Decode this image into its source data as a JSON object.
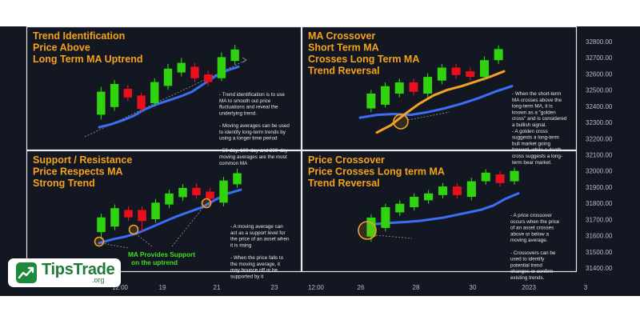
{
  "chart_data": {
    "type": "candlestick",
    "price_axis": {
      "ticks": [
        31400,
        31500,
        31600,
        31700,
        31800,
        31900,
        32000,
        32100,
        32200,
        32300,
        32400,
        32500,
        32600,
        32700,
        32800
      ],
      "labels": [
        "31400.00",
        "31500.00",
        "31600.00",
        "31700.00",
        "31800.00",
        "31900.00",
        "32000.00",
        "32100.00",
        "32200.00",
        "32300.00",
        "32400.00",
        "32500.00",
        "32600.00",
        "32700.00",
        "32800.00"
      ]
    },
    "time_axis": {
      "labels": [
        "12:00",
        "19",
        "21",
        "23",
        "12:00",
        "26",
        "28",
        "30",
        "2023",
        "3"
      ]
    },
    "panels": [
      {
        "id": "trend",
        "title_lines": [
          "Trend Identification",
          "Price Above",
          "Long Term MA Uptrend"
        ],
        "notes": [
          "- Trend identification is to use",
          "MA to smooth out price",
          "fluctuations and reveal the",
          "underlying trend.",
          "",
          "- Moving averages can be used",
          "to identify long-term trends by",
          "using a longer time period",
          "",
          "- 50-day, 100-day and 200-day",
          "moving averages are the most",
          "common MA"
        ],
        "candles": [
          {
            "o": 0.18,
            "c": 0.42,
            "h": 0.47,
            "l": 0.13
          },
          {
            "o": 0.26,
            "c": 0.5,
            "h": 0.54,
            "l": 0.22
          },
          {
            "o": 0.45,
            "c": 0.36,
            "h": 0.49,
            "l": 0.32
          },
          {
            "o": 0.38,
            "c": 0.24,
            "h": 0.41,
            "l": 0.2
          },
          {
            "o": 0.3,
            "c": 0.52,
            "h": 0.56,
            "l": 0.27
          },
          {
            "o": 0.48,
            "c": 0.66,
            "h": 0.71,
            "l": 0.44
          },
          {
            "o": 0.62,
            "c": 0.72,
            "h": 0.77,
            "l": 0.58
          },
          {
            "o": 0.68,
            "c": 0.56,
            "h": 0.72,
            "l": 0.52
          },
          {
            "o": 0.6,
            "c": 0.52,
            "h": 0.64,
            "l": 0.48
          },
          {
            "o": 0.56,
            "c": 0.78,
            "h": 0.83,
            "l": 0.53
          },
          {
            "o": 0.74,
            "c": 0.86,
            "h": 0.91,
            "l": 0.7
          }
        ],
        "ma_long": [
          0.05,
          0.08,
          0.12,
          0.17,
          0.24,
          0.29,
          0.33,
          0.37,
          0.42,
          0.5,
          0.58,
          0.64,
          0.68
        ]
      },
      {
        "id": "ma-crossover",
        "title_lines": [
          "MA Crossover",
          "Short Term MA",
          "Crosses Long Term MA",
          "Trend Reversal"
        ],
        "notes": [
          "- When the short-term",
          "MA crosses above the",
          "long-term MA, it is",
          "known as a \"golden",
          "cross\" and is considered",
          "a bullish signal.",
          "- A golden cross",
          "suggests a long-term",
          "bull market going",
          "forward, while a death",
          "cross suggests a long-",
          "term bear market."
        ],
        "candles": [
          {
            "o": 0.28,
            "c": 0.44,
            "h": 0.48,
            "l": 0.24
          },
          {
            "o": 0.32,
            "c": 0.52,
            "h": 0.56,
            "l": 0.29
          },
          {
            "o": 0.44,
            "c": 0.56,
            "h": 0.6,
            "l": 0.4
          },
          {
            "o": 0.56,
            "c": 0.46,
            "h": 0.6,
            "l": 0.42
          },
          {
            "o": 0.44,
            "c": 0.62,
            "h": 0.66,
            "l": 0.4
          },
          {
            "o": 0.58,
            "c": 0.72,
            "h": 0.76,
            "l": 0.54
          },
          {
            "o": 0.72,
            "c": 0.64,
            "h": 0.76,
            "l": 0.6
          },
          {
            "o": 0.68,
            "c": 0.62,
            "h": 0.72,
            "l": 0.58
          },
          {
            "o": 0.62,
            "c": 0.8,
            "h": 0.84,
            "l": 0.58
          },
          {
            "o": 0.8,
            "c": 0.92,
            "h": 0.96,
            "l": 0.76
          }
        ],
        "ma_short": [
          0.02,
          0.1,
          0.22,
          0.33,
          0.42,
          0.48,
          0.52,
          0.57,
          0.62,
          0.68
        ],
        "ma_long": [
          0.18,
          0.21,
          0.22,
          0.21,
          0.24,
          0.28,
          0.33,
          0.39,
          0.46,
          0.52
        ]
      },
      {
        "id": "support",
        "title_lines": [
          "Support / Resistance",
          "Price Respects MA",
          "Strong Trend"
        ],
        "annotation": [
          "MA Provides Support",
          "on the uptrend"
        ],
        "notes": [
          "- A moving average can",
          "act as a support level for",
          "the price of an asset when",
          "it is rising",
          "",
          "- When the price falls to",
          "the moving average, it",
          "may bounce off or be",
          "supported by it"
        ],
        "candles": [
          {
            "o": 0.26,
            "c": 0.42,
            "h": 0.46,
            "l": 0.18
          },
          {
            "o": 0.32,
            "c": 0.52,
            "h": 0.56,
            "l": 0.28
          },
          {
            "o": 0.5,
            "c": 0.42,
            "h": 0.54,
            "l": 0.38
          },
          {
            "o": 0.5,
            "c": 0.38,
            "h": 0.54,
            "l": 0.26
          },
          {
            "o": 0.4,
            "c": 0.58,
            "h": 0.62,
            "l": 0.36
          },
          {
            "o": 0.56,
            "c": 0.68,
            "h": 0.72,
            "l": 0.52
          },
          {
            "o": 0.64,
            "c": 0.74,
            "h": 0.78,
            "l": 0.6
          },
          {
            "o": 0.74,
            "c": 0.66,
            "h": 0.79,
            "l": 0.62
          },
          {
            "o": 0.7,
            "c": 0.62,
            "h": 0.74,
            "l": 0.56
          },
          {
            "o": 0.58,
            "c": 0.82,
            "h": 0.86,
            "l": 0.54
          },
          {
            "o": 0.78,
            "c": 0.9,
            "h": 0.95,
            "l": 0.74
          }
        ],
        "ma_long": [
          0.14,
          0.18,
          0.21,
          0.25,
          0.31,
          0.37,
          0.43,
          0.48,
          0.53,
          0.61,
          0.68,
          0.72
        ]
      },
      {
        "id": "price-crossover",
        "title_lines": [
          "Price Crossover",
          "Price Crosses Long term MA",
          "Trend Reversal"
        ],
        "notes": [
          "- A price crossover",
          "occurs when the price",
          "of an asset crosses",
          "above or below a",
          "moving average.",
          "",
          "- Crossovers can be",
          "used to identify",
          "potential trend",
          "changes or confirm",
          "existing trends."
        ],
        "candles": [
          {
            "o": 0.16,
            "c": 0.38,
            "h": 0.42,
            "l": 0.1
          },
          {
            "o": 0.26,
            "c": 0.5,
            "h": 0.54,
            "l": 0.22
          },
          {
            "o": 0.44,
            "c": 0.54,
            "h": 0.58,
            "l": 0.4
          },
          {
            "o": 0.5,
            "c": 0.62,
            "h": 0.66,
            "l": 0.46
          },
          {
            "o": 0.58,
            "c": 0.66,
            "h": 0.7,
            "l": 0.54
          },
          {
            "o": 0.64,
            "c": 0.74,
            "h": 0.78,
            "l": 0.6
          },
          {
            "o": 0.74,
            "c": 0.64,
            "h": 0.78,
            "l": 0.6
          },
          {
            "o": 0.62,
            "c": 0.8,
            "h": 0.84,
            "l": 0.58
          },
          {
            "o": 0.8,
            "c": 0.9,
            "h": 0.94,
            "l": 0.76
          },
          {
            "o": 0.88,
            "c": 0.78,
            "h": 0.92,
            "l": 0.74
          },
          {
            "o": 0.8,
            "c": 0.92,
            "h": 0.96,
            "l": 0.76
          }
        ],
        "ma_long": [
          0.3,
          0.31,
          0.32,
          0.33,
          0.34,
          0.36,
          0.38,
          0.41,
          0.44,
          0.47,
          0.52,
          0.6,
          0.66
        ]
      }
    ],
    "colors": {
      "background": "#131722",
      "panel_border": "#e8e8e8",
      "bull": "#2fd40f",
      "bear": "#e8101d",
      "ma_long": "#3b6ef5",
      "ma_short": "#f2a227",
      "title": "#f5a21b",
      "annotation": "#3fe01e",
      "highlight_circle": "#f2a227"
    }
  },
  "logo": {
    "name": "TipsTrade",
    "tld": ".org"
  }
}
